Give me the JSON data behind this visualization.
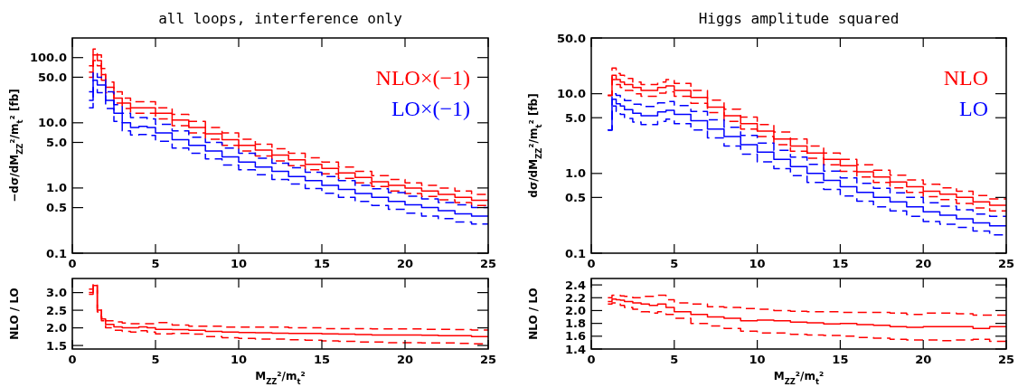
{
  "chart_data": [
    {
      "type": "step",
      "title": "all loops, interference only",
      "ylabel": "−dσ/dM$_{ZZ}$²/m$_{t}$² [fb]",
      "log": "y",
      "legend": "top right",
      "xlim": [
        0,
        25
      ],
      "xticks": [
        0,
        5,
        10,
        15,
        20,
        25
      ],
      "ylim": [
        0.1,
        200
      ],
      "yticks": [
        0.1,
        0.5,
        {
          "value": 1,
          "label": "1.0"
        },
        {
          "value": 5,
          "label": "5.0"
        },
        {
          "value": 10,
          "label": "10.0"
        },
        {
          "value": 50,
          "label": "50.0"
        },
        {
          "value": 100,
          "label": "100.0"
        }
      ],
      "x": [
        1,
        1.25,
        1.5,
        1.75,
        2,
        2.5,
        3,
        3.5,
        4,
        4.5,
        5,
        6,
        7,
        8,
        9,
        10,
        11,
        12,
        13,
        14,
        15,
        16,
        17,
        18,
        19,
        20,
        21,
        22,
        23,
        24,
        25
      ],
      "series": [
        {
          "name": "NLO×(−1)",
          "color": "#ff0000",
          "values": [
            60,
            110,
            90,
            55,
            35,
            24,
            20,
            17,
            17,
            17,
            14,
            11,
            8.5,
            6.8,
            5.5,
            4.5,
            3.8,
            3.2,
            2.7,
            2.3,
            2,
            1.7,
            1.45,
            1.25,
            1.1,
            1,
            0.9,
            0.8,
            0.72,
            0.65,
            0.65
          ]
        },
        {
          "color": "#ff0000",
          "line_style": "dashed",
          "values": [
            75,
            135,
            110,
            68,
            42,
            30,
            24,
            21,
            21,
            21,
            17,
            13.5,
            10.5,
            8.5,
            7,
            5.6,
            4.7,
            4,
            3.4,
            2.9,
            2.5,
            2.1,
            1.8,
            1.55,
            1.35,
            1.2,
            1.1,
            1,
            0.9,
            0.8,
            0.8
          ]
        },
        {
          "color": "#ff0000",
          "line_style": "dashed",
          "values": [
            50,
            90,
            75,
            45,
            29,
            20,
            16.5,
            14,
            14,
            14,
            11.5,
            9,
            7,
            5.6,
            4.5,
            3.7,
            3.1,
            2.6,
            2.2,
            1.9,
            1.65,
            1.4,
            1.2,
            1.05,
            0.9,
            0.82,
            0.74,
            0.66,
            0.6,
            0.54,
            0.54
          ]
        },
        {
          "name": "LO×(−1)",
          "color": "#0000ff",
          "values": [
            22,
            45,
            38,
            38,
            22,
            14,
            10,
            8.5,
            8.8,
            8.5,
            7,
            5.5,
            4.5,
            3.7,
            3,
            2.5,
            2.1,
            1.8,
            1.5,
            1.3,
            1.1,
            0.95,
            0.82,
            0.72,
            0.62,
            0.55,
            0.5,
            0.45,
            0.4,
            0.37,
            0.37
          ]
        },
        {
          "color": "#0000ff",
          "line_style": "dashed",
          "values": [
            30,
            60,
            50,
            50,
            30,
            19,
            14,
            12,
            12,
            11.5,
            9.5,
            7.5,
            6,
            5,
            4.1,
            3.4,
            2.85,
            2.4,
            2.05,
            1.75,
            1.5,
            1.3,
            1.1,
            0.97,
            0.85,
            0.75,
            0.68,
            0.6,
            0.55,
            0.5,
            0.5
          ]
        },
        {
          "color": "#0000ff",
          "line_style": "dashed",
          "values": [
            17,
            34,
            29,
            29,
            16.5,
            10.5,
            7.5,
            6.5,
            6.6,
            6.4,
            5.2,
            4.1,
            3.4,
            2.8,
            2.25,
            1.9,
            1.6,
            1.35,
            1.15,
            0.98,
            0.83,
            0.72,
            0.62,
            0.54,
            0.47,
            0.41,
            0.37,
            0.34,
            0.3,
            0.28,
            0.28
          ]
        }
      ]
    },
    {
      "type": "step",
      "title": "Higgs amplitude squared",
      "ylabel": "dσ/dM$_{ZZ}$²/m$_{t}$² [fb]",
      "log": "y",
      "legend": "top right",
      "xlim": [
        0,
        25
      ],
      "xticks": [
        0,
        5,
        10,
        15,
        20,
        25
      ],
      "ylim": [
        0.1,
        50
      ],
      "yticks": [
        0.1,
        0.5,
        {
          "value": 1,
          "label": "1.0"
        },
        {
          "value": 5,
          "label": "5.0"
        },
        {
          "value": 10,
          "label": "10.0"
        },
        {
          "value": 50,
          "label": "50.0"
        }
      ],
      "x": [
        1,
        1.25,
        1.5,
        1.75,
        2,
        2.5,
        3,
        3.5,
        4,
        4.5,
        5,
        6,
        7,
        8,
        9,
        10,
        11,
        12,
        13,
        14,
        15,
        16,
        17,
        18,
        19,
        20,
        21,
        22,
        23,
        24,
        25
      ],
      "series": [
        {
          "name": "NLO",
          "color": "#ff0000",
          "values": [
            9.5,
            17,
            15,
            14,
            13,
            12,
            11,
            11,
            12,
            12.5,
            11,
            9,
            6.8,
            5.3,
            4.2,
            3.4,
            2.7,
            2.2,
            1.8,
            1.5,
            1.25,
            1.05,
            0.9,
            0.78,
            0.68,
            0.6,
            0.55,
            0.5,
            0.44,
            0.4,
            0.4
          ]
        },
        {
          "color": "#ff0000",
          "line_style": "dashed",
          "values": [
            9.5,
            21,
            18,
            17,
            15.5,
            14,
            13,
            13,
            14,
            15,
            13.5,
            11,
            8.3,
            6.4,
            5.1,
            4.1,
            3.3,
            2.7,
            2.2,
            1.8,
            1.5,
            1.28,
            1.1,
            0.95,
            0.83,
            0.73,
            0.66,
            0.6,
            0.53,
            0.48,
            0.48
          ]
        },
        {
          "color": "#ff0000",
          "line_style": "dashed",
          "values": [
            9.5,
            15,
            13,
            12,
            11,
            10,
            9.3,
            9.3,
            10.2,
            10.6,
            9.3,
            7.6,
            5.8,
            4.5,
            3.6,
            2.9,
            2.3,
            1.9,
            1.55,
            1.28,
            1.06,
            0.9,
            0.77,
            0.66,
            0.58,
            0.51,
            0.47,
            0.42,
            0.37,
            0.34,
            0.34
          ]
        },
        {
          "name": "LO",
          "color": "#0000ff",
          "values": [
            3.5,
            8.5,
            7.5,
            7,
            6.3,
            5.7,
            5.3,
            5.3,
            5.9,
            6.2,
            5.5,
            4.6,
            3.6,
            2.9,
            2.3,
            1.85,
            1.5,
            1.22,
            1,
            0.82,
            0.68,
            0.58,
            0.5,
            0.44,
            0.38,
            0.33,
            0.3,
            0.27,
            0.24,
            0.22,
            0.22
          ]
        },
        {
          "color": "#0000ff",
          "line_style": "dashed",
          "values": [
            3.5,
            10,
            9.5,
            9,
            8.2,
            7.4,
            6.9,
            6.9,
            7.7,
            8,
            7.1,
            6,
            4.7,
            3.8,
            3,
            2.4,
            1.95,
            1.6,
            1.3,
            1.07,
            0.88,
            0.75,
            0.65,
            0.57,
            0.5,
            0.43,
            0.39,
            0.35,
            0.31,
            0.29,
            0.29
          ]
        },
        {
          "color": "#0000ff",
          "line_style": "dashed",
          "values": [
            3.5,
            7,
            6,
            5.5,
            4.9,
            4.4,
            4.1,
            4.1,
            4.5,
            4.8,
            4.2,
            3.5,
            2.8,
            2.2,
            1.75,
            1.4,
            1.15,
            0.94,
            0.77,
            0.63,
            0.52,
            0.45,
            0.38,
            0.34,
            0.29,
            0.25,
            0.23,
            0.21,
            0.19,
            0.17,
            0.17
          ]
        }
      ]
    },
    {
      "type": "step",
      "ylabel": "NLO / LO",
      "xlabel": "M$_{ZZ}$²/m$_{t}$²",
      "xlim": [
        0,
        25
      ],
      "xticks": [
        0,
        5,
        10,
        15,
        20,
        25
      ],
      "ylim": [
        1.4,
        3.4
      ],
      "yticks": [
        1.5,
        {
          "value": 2,
          "label": "2.0"
        },
        2.5,
        {
          "value": 3,
          "label": "3.0"
        }
      ],
      "x": [
        1,
        1.25,
        1.5,
        1.75,
        2,
        2.5,
        3,
        3.5,
        4,
        4.5,
        5,
        6,
        7,
        8,
        9,
        10,
        11,
        12,
        13,
        14,
        15,
        16,
        17,
        18,
        19,
        20,
        21,
        22,
        23,
        24,
        25
      ],
      "series": [
        {
          "color": "#ff0000",
          "values": [
            3,
            3.2,
            2.5,
            2.25,
            2.1,
            2.03,
            2,
            2,
            2.03,
            2,
            1.96,
            1.95,
            1.93,
            1.9,
            1.88,
            1.87,
            1.86,
            1.85,
            1.84,
            1.84,
            1.83,
            1.82,
            1.81,
            1.8,
            1.8,
            1.8,
            1.79,
            1.78,
            1.78,
            1.75,
            1.75
          ]
        },
        {
          "color": "#ff0000",
          "line_style": "dashed",
          "values": [
            3.1,
            3.25,
            2.55,
            2.3,
            2.2,
            2.17,
            2.14,
            2.12,
            2.12,
            2.12,
            2.15,
            2.08,
            2.05,
            2.05,
            2.02,
            2.02,
            2.02,
            2.02,
            2,
            2,
            1.98,
            1.98,
            1.98,
            1.97,
            1.97,
            1.97,
            1.96,
            1.96,
            1.95,
            1.94,
            1.94
          ]
        },
        {
          "color": "#ff0000",
          "line_style": "dashed",
          "values": [
            2.95,
            3.1,
            2.45,
            2.2,
            2,
            1.93,
            1.9,
            1.88,
            1.92,
            1.88,
            1.83,
            1.84,
            1.82,
            1.75,
            1.72,
            1.7,
            1.68,
            1.68,
            1.66,
            1.65,
            1.63,
            1.62,
            1.6,
            1.6,
            1.58,
            1.58,
            1.57,
            1.57,
            1.56,
            1.55,
            1.55
          ]
        }
      ]
    },
    {
      "type": "step",
      "ylabel": "NLO / LO",
      "xlabel": "M$_{ZZ}$²/m$_{t}$²",
      "xlim": [
        0,
        25
      ],
      "xticks": [
        0,
        5,
        10,
        15,
        20,
        25
      ],
      "ylim": [
        1.4,
        2.5
      ],
      "yticks": [
        1.4,
        1.6,
        1.8,
        {
          "value": 2,
          "label": "2.0"
        },
        2.2,
        2.4
      ],
      "x": [
        1,
        1.25,
        1.5,
        1.75,
        2,
        2.5,
        3,
        3.5,
        4,
        4.5,
        5,
        6,
        7,
        8,
        9,
        10,
        11,
        12,
        13,
        14,
        15,
        16,
        17,
        18,
        19,
        20,
        21,
        22,
        23,
        24,
        25
      ],
      "series": [
        {
          "color": "#ff0000",
          "values": [
            2.14,
            2.18,
            2.17,
            2.16,
            2.14,
            2.12,
            2.1,
            2.08,
            2.1,
            2.05,
            1.98,
            1.94,
            1.9,
            1.88,
            1.84,
            1.85,
            1.84,
            1.82,
            1.81,
            1.79,
            1.8,
            1.78,
            1.77,
            1.75,
            1.74,
            1.75,
            1.75,
            1.75,
            1.72,
            1.75,
            1.75
          ]
        },
        {
          "color": "#ff0000",
          "line_style": "dashed",
          "values": [
            2.2,
            2.24,
            2.24,
            2.23,
            2.22,
            2.2,
            2.22,
            2.22,
            2.24,
            2.17,
            2.12,
            2.1,
            2.06,
            2.05,
            2.03,
            2.02,
            2,
            1.99,
            1.98,
            1.98,
            1.97,
            1.97,
            1.97,
            1.96,
            1.94,
            1.96,
            1.96,
            1.95,
            1.93,
            1.93,
            1.93
          ]
        },
        {
          "color": "#ff0000",
          "line_style": "dashed",
          "values": [
            2.1,
            2.12,
            2.1,
            2.08,
            2.05,
            2.02,
            1.98,
            1.96,
            1.98,
            1.94,
            1.88,
            1.8,
            1.76,
            1.72,
            1.68,
            1.65,
            1.65,
            1.63,
            1.62,
            1.61,
            1.6,
            1.58,
            1.57,
            1.55,
            1.54,
            1.54,
            1.53,
            1.54,
            1.55,
            1.52,
            1.52
          ]
        }
      ]
    }
  ]
}
